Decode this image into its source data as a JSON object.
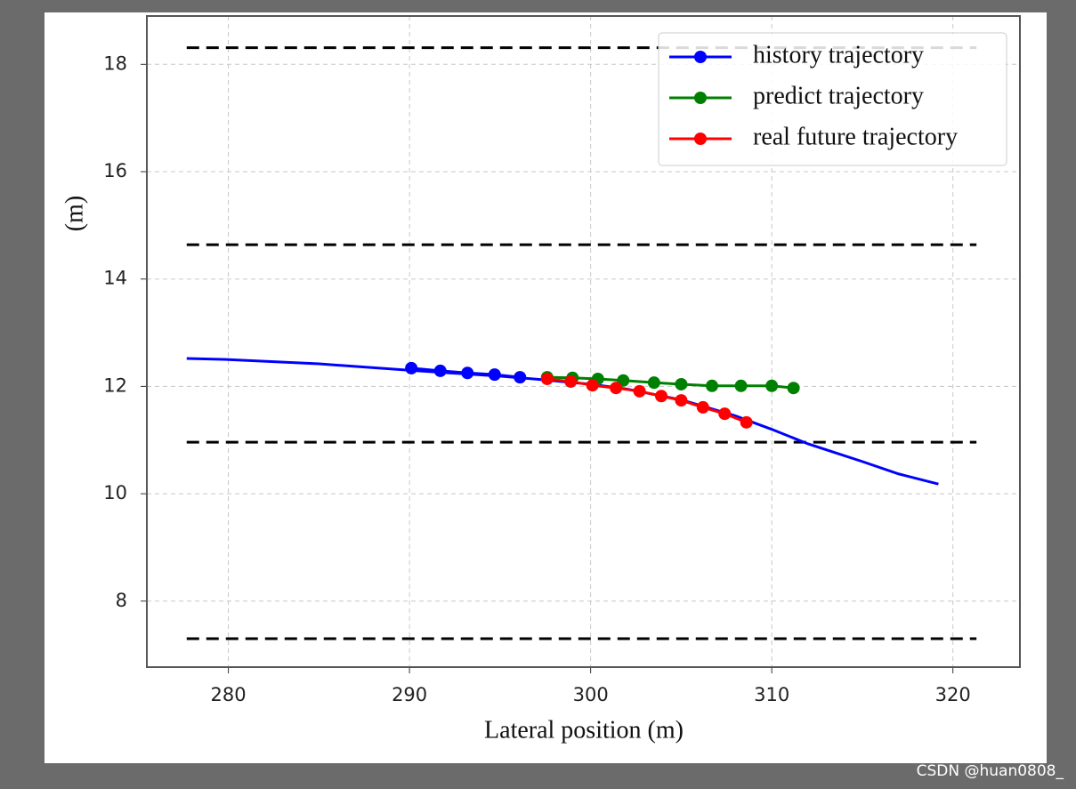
{
  "chart_data": {
    "type": "line",
    "xlabel": "Lateral position (m)",
    "ylabel": "(m)",
    "xlim": [
      275.5,
      323.7
    ],
    "ylim": [
      6.77,
      18.9
    ],
    "xticks": [
      280,
      290,
      300,
      310,
      320
    ],
    "yticks": [
      8,
      10,
      12,
      14,
      16,
      18
    ],
    "grid": true,
    "legend": "upper right",
    "hlines": {
      "y": [
        18.31,
        14.64,
        10.96,
        7.3
      ],
      "xmin": 277.7,
      "xmax": 321.3,
      "color": "#000000",
      "style": "dashed"
    },
    "series": [
      {
        "color": "#0000ff",
        "marker": false,
        "x": [
          277.7,
          280,
          285,
          290,
          295,
          297.5,
          300,
          302,
          305,
          308,
          310,
          312,
          315,
          317,
          319.2
        ],
        "values": [
          12.52,
          12.5,
          12.42,
          12.3,
          12.19,
          12.12,
          12.04,
          11.95,
          11.75,
          11.45,
          11.2,
          10.93,
          10.6,
          10.37,
          10.18
        ]
      },
      {
        "name": "history trajectory",
        "color": "#0000ff",
        "marker": true,
        "x": [
          290.1,
          291.7,
          293.2,
          294.7,
          296.1
        ],
        "values": [
          12.34,
          12.29,
          12.25,
          12.22,
          12.17
        ]
      },
      {
        "name": "predict trajectory",
        "color": "#008000",
        "marker": true,
        "x": [
          297.6,
          299.0,
          300.4,
          301.8,
          303.5,
          305.0,
          306.7,
          308.3,
          310.0,
          311.2
        ],
        "values": [
          12.17,
          12.16,
          12.14,
          12.11,
          12.07,
          12.04,
          12.01,
          12.01,
          12.01,
          11.97
        ]
      },
      {
        "name": "real future trajectory",
        "color": "#ff0000",
        "marker": true,
        "x": [
          297.6,
          298.9,
          300.1,
          301.4,
          302.7,
          303.9,
          305.0,
          306.2,
          307.4,
          308.6
        ],
        "values": [
          12.14,
          12.09,
          12.02,
          11.97,
          11.91,
          11.82,
          11.74,
          11.61,
          11.49,
          11.33
        ]
      }
    ]
  },
  "watermark": "CSDN @huan0808_"
}
